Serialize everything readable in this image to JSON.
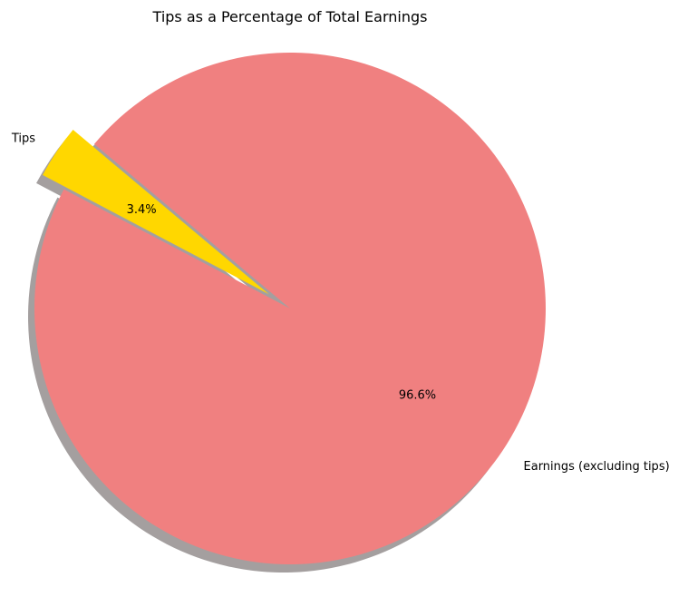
{
  "chart_data": {
    "type": "pie",
    "title": "Tips as a Percentage of Total Earnings",
    "slices": [
      {
        "label": "Earnings (excluding tips)",
        "value": 96.6,
        "pct_label": "96.6%",
        "color": "#F08080",
        "explode": 0
      },
      {
        "label": "Tips",
        "value": 3.4,
        "pct_label": "3.4%",
        "color": "#FFD700",
        "explode": 0.1
      }
    ],
    "start_angle": 140,
    "shadow": true,
    "legend": "none"
  }
}
